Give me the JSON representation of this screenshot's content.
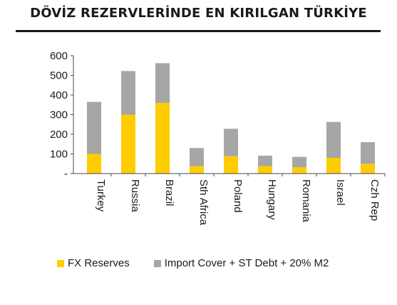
{
  "header": {
    "title": "DÖVİZ REZERVLERİNDE EN KIRILGAN TÜRKİYE"
  },
  "colors": {
    "fx": "#ffcc00",
    "cover": "#a6a6a6",
    "axis": "#4a4a4a",
    "title_rule": "#1a1a1a"
  },
  "chart_data": {
    "type": "bar",
    "stacked": true,
    "title": "",
    "xlabel": "",
    "ylabel": "",
    "ylim": [
      0,
      600
    ],
    "yticks": [
      0,
      100,
      200,
      300,
      400,
      500,
      600
    ],
    "yticklabels": [
      "-",
      "100",
      "200",
      "300",
      "400",
      "500",
      "600"
    ],
    "grid": false,
    "legend": "bottom",
    "categories": [
      "Turkey",
      "Russia",
      "Brazil",
      "Sth Africa",
      "Poland",
      "Hungary",
      "Romania",
      "Israel",
      "Czh Rep"
    ],
    "series": [
      {
        "name": "FX Reserves",
        "values": [
          100,
          300,
          360,
          38,
          88,
          38,
          32,
          80,
          50
        ]
      },
      {
        "name": "Import Cover + ST Debt + 20% M2",
        "values": [
          265,
          222,
          202,
          92,
          140,
          53,
          53,
          183,
          110
        ]
      }
    ]
  }
}
